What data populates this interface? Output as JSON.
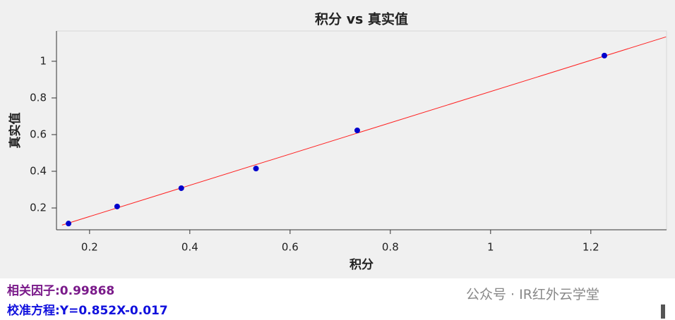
{
  "chart_data": {
    "type": "scatter",
    "title": "积分 vs 真实值",
    "x_label": "积分",
    "y_label": "真实值",
    "x": [
      0.158,
      0.255,
      0.383,
      0.532,
      0.734,
      1.227
    ],
    "values": [
      0.115,
      0.208,
      0.308,
      0.415,
      0.623,
      1.031
    ],
    "color": "#0000cc",
    "fit_line": {
      "x": [
        0.145,
        1.35
      ],
      "values": [
        0.1065,
        1.133
      ],
      "color": "#ff2020"
    },
    "xlim": [
      0.134,
      1.351
    ],
    "ylim": [
      0.081,
      1.165
    ],
    "xticks": [
      0.2,
      0.4,
      0.6,
      0.8,
      1,
      1.2
    ],
    "yticks": [
      0.2,
      0.4,
      0.6,
      0.8,
      1
    ]
  },
  "annotations": [
    {
      "text": "相关因子:0.99868",
      "color": "#7a1a8a"
    },
    {
      "text": "校准方程:Y=0.852X-0.017",
      "color": "#1010dd"
    }
  ],
  "watermark": "公众号 · IR红外云学堂"
}
